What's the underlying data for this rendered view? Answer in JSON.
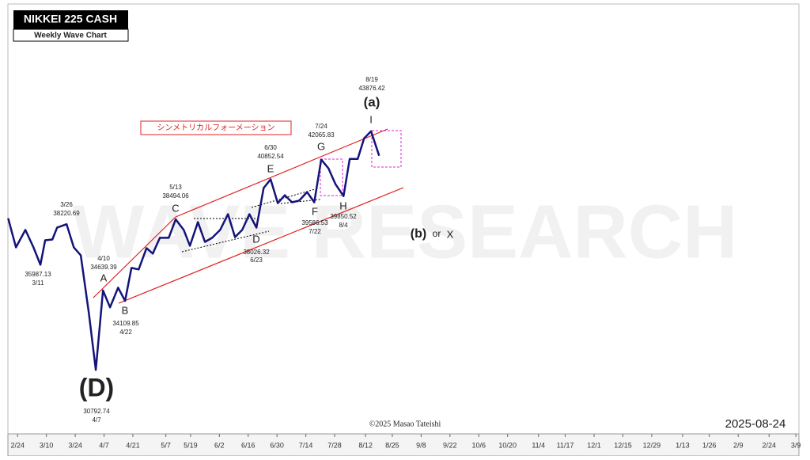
{
  "chart_data": {
    "type": "line",
    "title": "NIKKEI 225 CASH",
    "subtitle": "Weekly Wave Chart",
    "yscale": "log",
    "color": "#14147a",
    "xlim": [
      -4.7,
      379.5
    ],
    "ylim": [
      28000,
      53000
    ],
    "xticks": [
      {
        "value": 0,
        "label": "2/24"
      },
      {
        "value": 14,
        "label": "3/10"
      },
      {
        "value": 28,
        "label": "3/24"
      },
      {
        "value": 42,
        "label": "4/7"
      },
      {
        "value": 56,
        "label": "4/21"
      },
      {
        "value": 72,
        "label": "5/7"
      },
      {
        "value": 84,
        "label": "5/19"
      },
      {
        "value": 98,
        "label": "6/2"
      },
      {
        "value": 112,
        "label": "6/16"
      },
      {
        "value": 126,
        "label": "6/30"
      },
      {
        "value": 140,
        "label": "7/14"
      },
      {
        "value": 154,
        "label": "7/28"
      },
      {
        "value": 169,
        "label": "8/12"
      },
      {
        "value": 182,
        "label": "8/25"
      },
      {
        "value": 196,
        "label": "9/8"
      },
      {
        "value": 210,
        "label": "9/22"
      },
      {
        "value": 224,
        "label": "10/6"
      },
      {
        "value": 238,
        "label": "10/20"
      },
      {
        "value": 253,
        "label": "11/4"
      },
      {
        "value": 266,
        "label": "11/17"
      },
      {
        "value": 280,
        "label": "12/1"
      },
      {
        "value": 294,
        "label": "12/15"
      },
      {
        "value": 308,
        "label": "12/29"
      },
      {
        "value": 323,
        "label": "1/13"
      },
      {
        "value": 336,
        "label": "1/26"
      },
      {
        "value": 350,
        "label": "2/9"
      },
      {
        "value": 365,
        "label": "2/24"
      },
      {
        "value": 378,
        "label": "3/9"
      }
    ],
    "x": [
      -4.6,
      -0.8,
      3.8,
      7.7,
      11.1,
      13.4,
      16.9,
      19.2,
      23.8,
      27.3,
      30.7,
      34.6,
      38.0,
      41.5,
      44.9,
      48.8,
      52.2,
      55.3,
      58.8,
      62.6,
      65.7,
      69.1,
      73.4,
      76.8,
      80.7,
      83.7,
      87.6,
      91.0,
      94.5,
      98.4,
      102.2,
      105.6,
      109.1,
      112.6,
      116.0,
      119.5,
      122.9,
      126.4,
      129.8,
      133.3,
      136.8,
      140.6,
      144.1,
      147.5,
      151.0,
      154.4,
      158.3,
      161.3,
      165.2,
      168.3,
      171.7,
      175.6
    ],
    "values": [
      38560,
      36931,
      37897,
      36931,
      35987.13,
      37320,
      37365,
      38032,
      38220.69,
      36931,
      36501,
      33508,
      30792.74,
      34639.39,
      33785,
      34789,
      34109.85,
      35821,
      35741,
      36886,
      36588,
      37457,
      37457,
      38494.06,
      37897,
      37018,
      38343,
      37233,
      37457,
      37897,
      38795,
      37496,
      37897,
      38795,
      38026.32,
      40327,
      40852.54,
      39436,
      39901,
      39484,
      39586.53,
      40090,
      39484,
      42065.83,
      41524,
      40564,
      39850.52,
      42113,
      42113,
      43416,
      43876.42,
      42310
    ],
    "annotations": [
      "3/26",
      "38220.69",
      "35987.13",
      "3/11",
      "4/10",
      "34639.39",
      "A",
      "B",
      "34109.85",
      "4/22",
      "5/13",
      "38494.06",
      "C",
      "38026.32",
      "6/23",
      "D",
      "6/30",
      "40852.54",
      "E",
      "F",
      "39586.53",
      "7/22",
      "7/24",
      "42065.83",
      "G",
      "H",
      "39850.52",
      "8/4",
      "8/19",
      "43876.42",
      "(a)",
      "I",
      "(D)",
      "30792.74",
      "4/7",
      "(b)",
      "or",
      "X",
      "シンメトリカルフォーメーション",
      "©2025 Masao Tateishi",
      "2025-08-24",
      "WAVE RESEARCH"
    ]
  }
}
